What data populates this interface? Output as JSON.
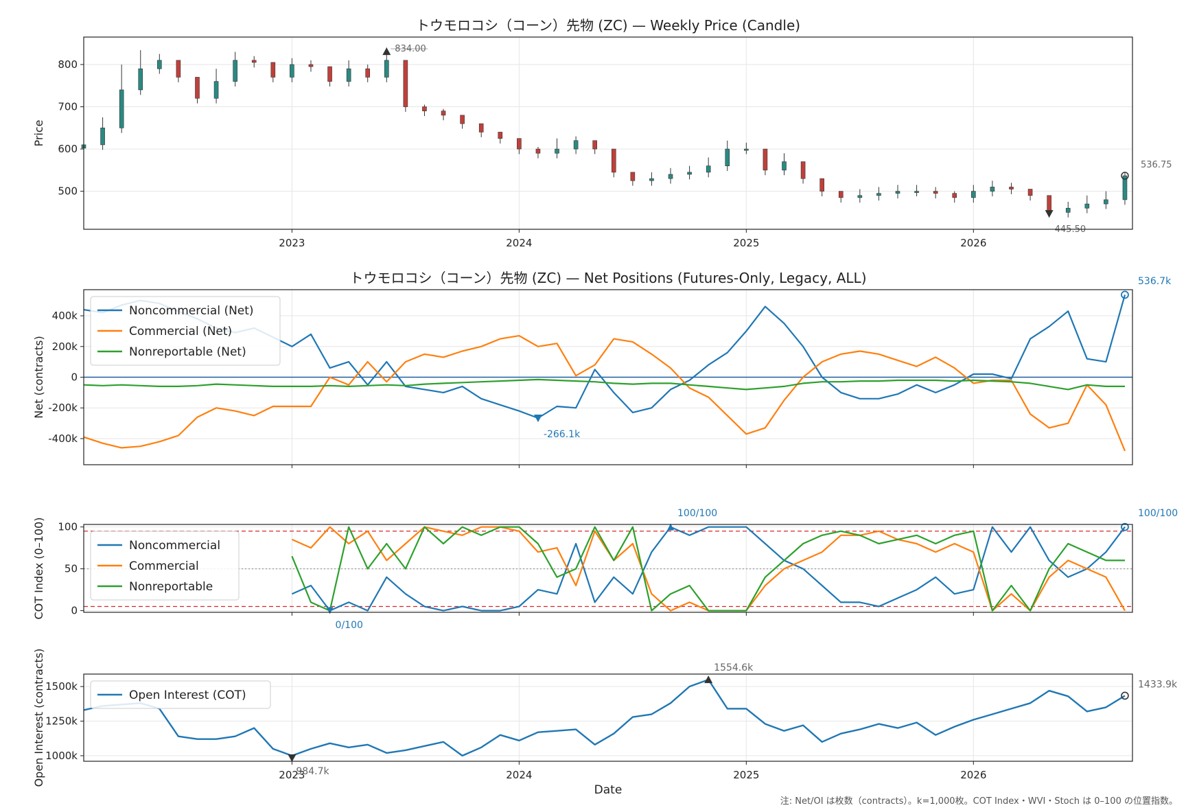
{
  "colors": {
    "noncommercial": "#1f77b4",
    "commercial": "#ff7f0e",
    "nonreportable": "#2ca02c",
    "candle_up": "#2a8a82",
    "candle_down": "#c0403a",
    "threshold_line": "#d62728",
    "annotation_gray": "#666666",
    "zero_line": "#1f5f9f"
  },
  "footnote": "注: Net/OI は枚数（contracts）。k=1,000枚。COT Index・WVI・Stoch は 0–100 の位置指数。",
  "chart_data": [
    {
      "id": "price",
      "type": "candlestick",
      "title": "トウモロコシ（コーン）先物 (ZC) — Weekly Price (Candle)",
      "ylabel": "Price",
      "xlabel": "",
      "ylim": [
        410,
        865
      ],
      "yticks": [
        500,
        600,
        700,
        800
      ],
      "xticks": [
        "2023",
        "2024",
        "2025",
        "2026"
      ],
      "grid": true,
      "annotations": {
        "max": "834.00",
        "min": "445.50",
        "last": "536.75"
      },
      "x": [
        "2022-02",
        "2022-03",
        "2022-04",
        "2022-05",
        "2022-06",
        "2022-07",
        "2022-08",
        "2022-09",
        "2022-10",
        "2022-11",
        "2022-12",
        "2023-01",
        "2023-02",
        "2023-03",
        "2023-04",
        "2023-05",
        "2023-06",
        "2023-07",
        "2023-08",
        "2023-09",
        "2023-10",
        "2023-11",
        "2023-12",
        "2024-01",
        "2024-02",
        "2024-03",
        "2024-04",
        "2024-05",
        "2024-06",
        "2024-07",
        "2024-08",
        "2024-09",
        "2024-10",
        "2024-11",
        "2024-12",
        "2025-01",
        "2025-02",
        "2025-03",
        "2025-04",
        "2025-05",
        "2025-06",
        "2025-07",
        "2025-08",
        "2025-09",
        "2025-10",
        "2025-11",
        "2025-12",
        "2026-01",
        "2026-02",
        "2026-03",
        "2026-04",
        "2026-05",
        "2026-06",
        "2026-07",
        "2026-08",
        "2026-09"
      ],
      "close": [
        610,
        650,
        740,
        790,
        810,
        770,
        720,
        760,
        810,
        805,
        770,
        800,
        795,
        760,
        790,
        770,
        810,
        700,
        690,
        680,
        660,
        640,
        625,
        600,
        590,
        600,
        620,
        600,
        545,
        525,
        530,
        540,
        545,
        560,
        600,
        600,
        550,
        570,
        530,
        500,
        485,
        490,
        495,
        500,
        500,
        495,
        485,
        500,
        510,
        505,
        490,
        450,
        460,
        470,
        480,
        536.75
      ],
      "high": [
        625,
        675,
        800,
        834,
        825,
        795,
        760,
        790,
        830,
        820,
        795,
        815,
        810,
        790,
        810,
        800,
        840,
        720,
        705,
        695,
        675,
        655,
        640,
        615,
        605,
        625,
        630,
        615,
        560,
        540,
        545,
        555,
        560,
        580,
        620,
        615,
        580,
        590,
        545,
        515,
        500,
        505,
        510,
        515,
        515,
        510,
        500,
        515,
        525,
        520,
        505,
        470,
        475,
        490,
        500,
        545
      ]
    },
    {
      "id": "net",
      "type": "line",
      "title": "トウモロコシ（コーン）先物 (ZC) — Net Positions (Futures-Only, Legacy, ALL)",
      "ylabel": "Net (contracts)",
      "xlabel": "",
      "ylim": [
        -570,
        570
      ],
      "yticks": [
        -400,
        -200,
        0,
        200,
        400
      ],
      "ytick_labels": [
        "-400k",
        "-200k",
        "0",
        "200k",
        "400k"
      ],
      "legend": "top-left",
      "annotations": {
        "min": "-266.1k",
        "last": "536.7k"
      },
      "x": [
        "2022-02",
        "2022-03",
        "2022-04",
        "2022-05",
        "2022-06",
        "2022-07",
        "2022-08",
        "2022-09",
        "2022-10",
        "2022-11",
        "2022-12",
        "2023-01",
        "2023-02",
        "2023-03",
        "2023-04",
        "2023-05",
        "2023-06",
        "2023-07",
        "2023-08",
        "2023-09",
        "2023-10",
        "2023-11",
        "2023-12",
        "2024-01",
        "2024-02",
        "2024-03",
        "2024-04",
        "2024-05",
        "2024-06",
        "2024-07",
        "2024-08",
        "2024-09",
        "2024-10",
        "2024-11",
        "2024-12",
        "2025-01",
        "2025-02",
        "2025-03",
        "2025-04",
        "2025-05",
        "2025-06",
        "2025-07",
        "2025-08",
        "2025-09",
        "2025-10",
        "2025-11",
        "2025-12",
        "2026-01",
        "2026-02",
        "2026-03",
        "2026-04",
        "2026-05",
        "2026-06",
        "2026-07",
        "2026-08",
        "2026-09"
      ],
      "series": [
        {
          "name": "Noncommercial (Net)",
          "color": "#1f77b4",
          "values": [
            440,
            420,
            470,
            500,
            480,
            430,
            380,
            320,
            290,
            320,
            260,
            200,
            280,
            60,
            100,
            -50,
            100,
            -60,
            -80,
            -100,
            -60,
            -140,
            -180,
            -220,
            -266,
            -190,
            -200,
            50,
            -100,
            -230,
            -200,
            -80,
            -20,
            80,
            160,
            300,
            460,
            350,
            200,
            0,
            -100,
            -140,
            -140,
            -110,
            -50,
            -100,
            -50,
            20,
            20,
            -10,
            250,
            330,
            430,
            120,
            100,
            536.7
          ]
        },
        {
          "name": "Commercial (Net)",
          "color": "#ff7f0e",
          "values": [
            -390,
            -430,
            -460,
            -450,
            -420,
            -380,
            -260,
            -200,
            -220,
            -250,
            -190,
            -190,
            -190,
            0,
            -50,
            100,
            -30,
            100,
            150,
            130,
            170,
            200,
            250,
            270,
            200,
            220,
            10,
            80,
            250,
            230,
            150,
            60,
            -70,
            -130,
            -250,
            -370,
            -330,
            -150,
            0,
            100,
            150,
            170,
            150,
            110,
            70,
            130,
            60,
            -40,
            -20,
            -20,
            -240,
            -330,
            -300,
            -50,
            -180,
            -480
          ]
        },
        {
          "name": "Nonreportable (Net)",
          "color": "#2ca02c",
          "values": [
            -50,
            -55,
            -50,
            -55,
            -60,
            -60,
            -55,
            -45,
            -50,
            -55,
            -60,
            -60,
            -60,
            -55,
            -60,
            -55,
            -50,
            -55,
            -45,
            -40,
            -35,
            -30,
            -25,
            -20,
            -15,
            -20,
            -25,
            -30,
            -40,
            -45,
            -40,
            -40,
            -50,
            -60,
            -70,
            -80,
            -70,
            -60,
            -40,
            -30,
            -30,
            -25,
            -25,
            -20,
            -20,
            -20,
            -25,
            -20,
            -25,
            -30,
            -40,
            -60,
            -80,
            -50,
            -60,
            -60
          ]
        }
      ]
    },
    {
      "id": "cot",
      "type": "line",
      "title": "",
      "ylabel": "COT Index (0–100)",
      "xlabel": "",
      "ylim": [
        -2,
        103
      ],
      "yticks": [
        0,
        50,
        100
      ],
      "thresholds": [
        5,
        50,
        95
      ],
      "legend": "top-left",
      "annotations": {
        "max": "100/100",
        "min": "0/100",
        "last": "100/100"
      },
      "x": [
        "2023-01",
        "2023-02",
        "2023-03",
        "2023-04",
        "2023-05",
        "2023-06",
        "2023-07",
        "2023-08",
        "2023-09",
        "2023-10",
        "2023-11",
        "2023-12",
        "2024-01",
        "2024-02",
        "2024-03",
        "2024-04",
        "2024-05",
        "2024-06",
        "2024-07",
        "2024-08",
        "2024-09",
        "2024-10",
        "2024-11",
        "2024-12",
        "2025-01",
        "2025-02",
        "2025-03",
        "2025-04",
        "2025-05",
        "2025-06",
        "2025-07",
        "2025-08",
        "2025-09",
        "2025-10",
        "2025-11",
        "2025-12",
        "2026-01",
        "2026-02",
        "2026-03",
        "2026-04",
        "2026-05",
        "2026-06",
        "2026-07",
        "2026-08",
        "2026-09"
      ],
      "series": [
        {
          "name": "Noncommercial",
          "color": "#1f77b4",
          "values": [
            20,
            30,
            0,
            10,
            0,
            40,
            20,
            5,
            0,
            5,
            0,
            0,
            5,
            25,
            20,
            80,
            10,
            40,
            20,
            70,
            100,
            90,
            100,
            100,
            100,
            80,
            60,
            50,
            30,
            10,
            10,
            5,
            15,
            25,
            40,
            20,
            25,
            100,
            70,
            100,
            60,
            40,
            50,
            70,
            100
          ]
        },
        {
          "name": "Commercial",
          "color": "#ff7f0e",
          "values": [
            85,
            75,
            100,
            80,
            95,
            60,
            80,
            100,
            95,
            90,
            100,
            100,
            95,
            70,
            75,
            30,
            95,
            60,
            80,
            20,
            0,
            10,
            0,
            0,
            0,
            30,
            50,
            60,
            70,
            90,
            90,
            95,
            85,
            80,
            70,
            80,
            70,
            0,
            20,
            0,
            40,
            60,
            50,
            40,
            0
          ]
        },
        {
          "name": "Nonreportable",
          "color": "#2ca02c",
          "values": [
            65,
            10,
            0,
            100,
            50,
            80,
            50,
            100,
            80,
            100,
            90,
            100,
            100,
            80,
            40,
            50,
            100,
            60,
            100,
            0,
            20,
            30,
            0,
            0,
            0,
            40,
            60,
            80,
            90,
            95,
            90,
            80,
            85,
            90,
            80,
            90,
            95,
            0,
            30,
            0,
            50,
            80,
            70,
            60,
            60
          ]
        }
      ]
    },
    {
      "id": "oi",
      "type": "line",
      "title": "",
      "ylabel": "Open Interest (contracts)",
      "xlabel": "Date",
      "ylim": [
        960,
        1590
      ],
      "yticks": [
        1000,
        1250,
        1500
      ],
      "ytick_labels": [
        "1000k",
        "1250k",
        "1500k"
      ],
      "xticks": [
        "2023",
        "2024",
        "2025",
        "2026"
      ],
      "legend": "top-left",
      "annotations": {
        "max": "1554.6k",
        "min": "984.7k",
        "last": "1433.9k"
      },
      "x": [
        "2022-02",
        "2022-03",
        "2022-04",
        "2022-05",
        "2022-06",
        "2022-07",
        "2022-08",
        "2022-09",
        "2022-10",
        "2022-11",
        "2022-12",
        "2023-01",
        "2023-02",
        "2023-03",
        "2023-04",
        "2023-05",
        "2023-06",
        "2023-07",
        "2023-08",
        "2023-09",
        "2023-10",
        "2023-11",
        "2023-12",
        "2024-01",
        "2024-02",
        "2024-03",
        "2024-04",
        "2024-05",
        "2024-06",
        "2024-07",
        "2024-08",
        "2024-09",
        "2024-10",
        "2024-11",
        "2024-12",
        "2025-01",
        "2025-02",
        "2025-03",
        "2025-04",
        "2025-05",
        "2025-06",
        "2025-07",
        "2025-08",
        "2025-09",
        "2025-10",
        "2025-11",
        "2025-12",
        "2026-01",
        "2026-02",
        "2026-03",
        "2026-04",
        "2026-05",
        "2026-06",
        "2026-07",
        "2026-08",
        "2026-09"
      ],
      "series": [
        {
          "name": "Open Interest (COT)",
          "color": "#1f77b4",
          "values": [
            1330,
            1360,
            1370,
            1380,
            1340,
            1140,
            1120,
            1120,
            1140,
            1200,
            1050,
            1000,
            1050,
            1090,
            1060,
            1080,
            1020,
            1040,
            1070,
            1100,
            1000,
            1060,
            1150,
            1110,
            1170,
            1180,
            1190,
            1080,
            1160,
            1280,
            1300,
            1380,
            1500,
            1550,
            1340,
            1340,
            1230,
            1180,
            1220,
            1100,
            1160,
            1190,
            1230,
            1200,
            1240,
            1150,
            1210,
            1260,
            1300,
            1340,
            1380,
            1470,
            1430,
            1320,
            1350,
            1433.9
          ]
        }
      ]
    }
  ]
}
